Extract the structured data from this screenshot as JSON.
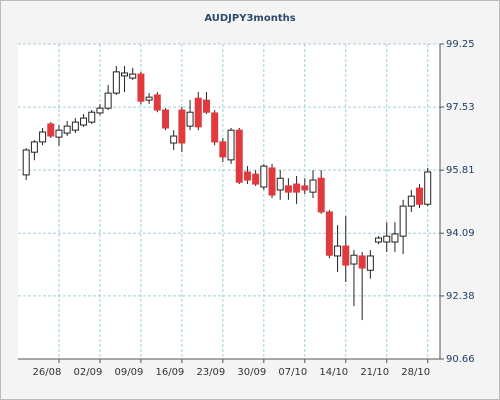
{
  "chart_data": {
    "type": "candlestick",
    "title": "AUDJPY3months",
    "categories": [
      null,
      null,
      null,
      null,
      "26/08",
      null,
      null,
      null,
      null,
      "02/09",
      null,
      null,
      null,
      null,
      "09/09",
      null,
      null,
      null,
      null,
      "16/09",
      null,
      null,
      null,
      null,
      "23/09",
      null,
      null,
      null,
      null,
      "30/09",
      null,
      null,
      null,
      null,
      "07/10",
      null,
      null,
      null,
      null,
      "14/10",
      null,
      null,
      null,
      null,
      "21/10",
      null,
      null,
      null,
      null,
      "28/10"
    ],
    "open": [
      95.68,
      96.3,
      96.58,
      97.07,
      96.71,
      96.82,
      96.9,
      97.04,
      97.12,
      97.37,
      97.5,
      97.91,
      98.38,
      98.32,
      98.43,
      97.72,
      97.86,
      97.45,
      96.55,
      97.45,
      97.01,
      97.77,
      97.72,
      97.37,
      96.58,
      96.09,
      96.9,
      95.76,
      95.7,
      95.35,
      95.87,
      95.27,
      95.38,
      95.43,
      95.38,
      95.21,
      95.59,
      94.67,
      93.47,
      93.74,
      93.25,
      93.47,
      93.08,
      93.85,
      93.85,
      93.85,
      94.01,
      94.83,
      95.32,
      94.88
    ],
    "high": [
      96.41,
      96.63,
      96.96,
      97.12,
      97.04,
      97.15,
      97.23,
      97.34,
      97.45,
      97.61,
      98.13,
      98.65,
      98.65,
      98.6,
      98.49,
      97.91,
      97.94,
      97.5,
      96.9,
      97.53,
      97.72,
      97.94,
      97.94,
      97.45,
      96.69,
      96.96,
      96.96,
      95.92,
      95.81,
      95.98,
      95.98,
      95.81,
      95.59,
      95.65,
      95.59,
      95.81,
      95.81,
      94.72,
      94.31,
      94.56,
      93.63,
      93.58,
      93.63,
      94.01,
      94.39,
      94.39,
      95.0,
      95.27,
      95.43,
      95.87
    ],
    "low": [
      95.54,
      96.08,
      96.49,
      96.69,
      96.47,
      96.74,
      96.82,
      96.99,
      97.07,
      97.31,
      97.45,
      97.86,
      97.94,
      98.27,
      97.61,
      97.61,
      97.39,
      96.9,
      96.36,
      96.3,
      96.9,
      96.9,
      97.34,
      96.49,
      96.03,
      95.98,
      95.43,
      95.43,
      95.38,
      95.27,
      95.05,
      95.0,
      95.0,
      94.89,
      95.16,
      95.05,
      94.62,
      93.41,
      93.03,
      92.76,
      92.1,
      91.72,
      92.85,
      93.79,
      93.58,
      93.58,
      93.52,
      94.67,
      94.78,
      94.83
    ],
    "close": [
      96.36,
      96.58,
      96.85,
      96.74,
      96.9,
      97.01,
      97.12,
      97.23,
      97.39,
      97.5,
      97.91,
      98.49,
      98.46,
      98.43,
      97.69,
      97.8,
      97.45,
      96.96,
      96.74,
      96.55,
      97.39,
      96.99,
      97.39,
      96.58,
      96.17,
      96.9,
      95.48,
      95.54,
      95.43,
      95.92,
      95.13,
      95.59,
      95.21,
      95.21,
      95.27,
      95.54,
      94.67,
      93.49,
      93.74,
      93.22,
      93.49,
      93.14,
      93.47,
      93.96,
      94.01,
      94.07,
      94.83,
      95.1,
      94.88,
      95.76
    ],
    "up_color": "#ffffff",
    "down_color": "#e03a3e",
    "ylim": [
      90.66,
      99.25
    ],
    "yticks": [
      90.66,
      92.38,
      94.09,
      95.81,
      97.53,
      99.25
    ],
    "grid": true
  }
}
